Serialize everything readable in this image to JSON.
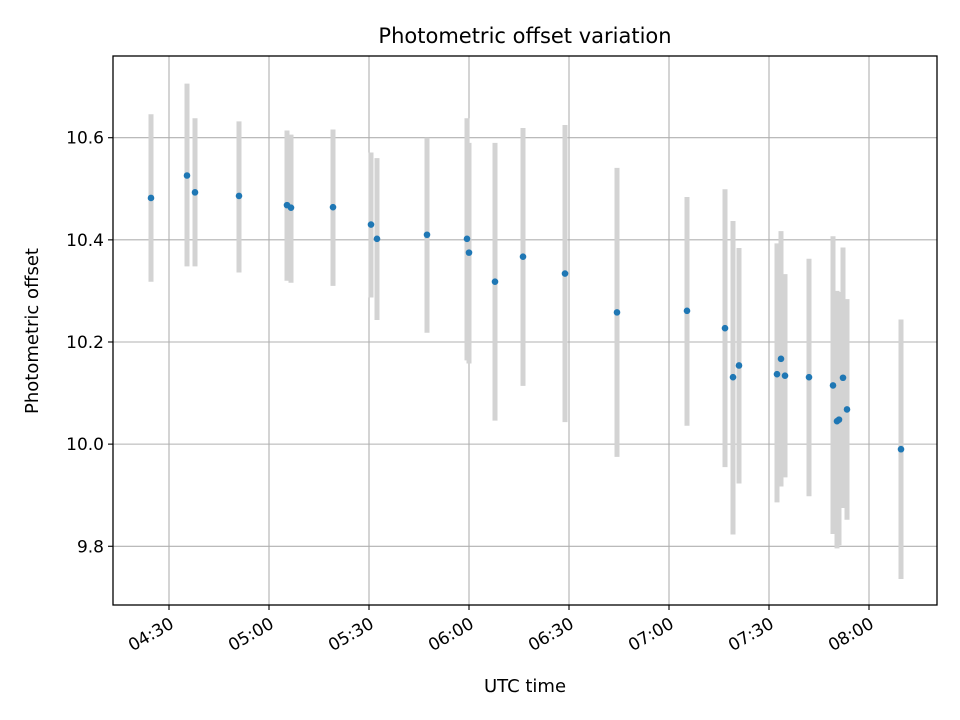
{
  "chart_data": {
    "type": "scatter",
    "title": "Photometric offset variation",
    "xlabel": "UTC time",
    "ylabel": "Photometric offset",
    "x_ticks": [
      "04:30",
      "05:00",
      "05:30",
      "06:00",
      "06:30",
      "07:00",
      "07:30",
      "08:00"
    ],
    "y_ticks": [
      "9.8",
      "10.0",
      "10.2",
      "10.4",
      "10.6"
    ],
    "y_tick_values": [
      9.8,
      10.0,
      10.2,
      10.4,
      10.6
    ],
    "xlim": [
      "04:13:12",
      "08:20:24"
    ],
    "ylim": [
      9.685,
      10.76
    ],
    "grid": true,
    "error_bar_color": "#d3d3d3",
    "point_color": "#1f77b4",
    "points": [
      {
        "x": "04:24:36",
        "y": 10.482,
        "ylo": 10.318,
        "yhi": 10.646
      },
      {
        "x": "04:35:24",
        "y": 10.526,
        "ylo": 10.348,
        "yhi": 10.706
      },
      {
        "x": "04:37:48",
        "y": 10.493,
        "ylo": 10.348,
        "yhi": 10.638
      },
      {
        "x": "04:51:00",
        "y": 10.486,
        "ylo": 10.336,
        "yhi": 10.632
      },
      {
        "x": "05:05:24",
        "y": 10.468,
        "ylo": 10.32,
        "yhi": 10.614
      },
      {
        "x": "05:06:36",
        "y": 10.463,
        "ylo": 10.316,
        "yhi": 10.606
      },
      {
        "x": "05:19:12",
        "y": 10.464,
        "ylo": 10.31,
        "yhi": 10.616
      },
      {
        "x": "05:30:36",
        "y": 10.43,
        "ylo": 10.287,
        "yhi": 10.571
      },
      {
        "x": "05:32:24",
        "y": 10.402,
        "ylo": 10.243,
        "yhi": 10.56
      },
      {
        "x": "05:47:24",
        "y": 10.41,
        "ylo": 10.218,
        "yhi": 10.6
      },
      {
        "x": "05:59:24",
        "y": 10.402,
        "ylo": 10.164,
        "yhi": 10.638
      },
      {
        "x": "06:00:00",
        "y": 10.375,
        "ylo": 10.158,
        "yhi": 10.59
      },
      {
        "x": "06:07:48",
        "y": 10.318,
        "ylo": 10.046,
        "yhi": 10.59
      },
      {
        "x": "06:16:12",
        "y": 10.367,
        "ylo": 10.114,
        "yhi": 10.619
      },
      {
        "x": "06:28:48",
        "y": 10.334,
        "ylo": 10.043,
        "yhi": 10.625
      },
      {
        "x": "06:44:24",
        "y": 10.258,
        "ylo": 9.975,
        "yhi": 10.541
      },
      {
        "x": "07:05:24",
        "y": 10.261,
        "ylo": 10.036,
        "yhi": 10.484
      },
      {
        "x": "07:16:48",
        "y": 10.227,
        "ylo": 9.955,
        "yhi": 10.499
      },
      {
        "x": "07:19:12",
        "y": 10.131,
        "ylo": 9.823,
        "yhi": 10.437
      },
      {
        "x": "07:21:00",
        "y": 10.154,
        "ylo": 9.923,
        "yhi": 10.384
      },
      {
        "x": "07:32:24",
        "y": 10.137,
        "ylo": 9.886,
        "yhi": 10.393
      },
      {
        "x": "07:33:36",
        "y": 10.167,
        "ylo": 9.917,
        "yhi": 10.417
      },
      {
        "x": "07:34:48",
        "y": 10.134,
        "ylo": 9.935,
        "yhi": 10.333
      },
      {
        "x": "07:42:00",
        "y": 10.131,
        "ylo": 9.898,
        "yhi": 10.363
      },
      {
        "x": "07:49:12",
        "y": 10.115,
        "ylo": 9.824,
        "yhi": 10.407
      },
      {
        "x": "07:50:24",
        "y": 10.045,
        "ylo": 9.796,
        "yhi": 10.3
      },
      {
        "x": "07:51:00",
        "y": 10.048,
        "ylo": 9.802,
        "yhi": 10.298
      },
      {
        "x": "07:52:12",
        "y": 10.13,
        "ylo": 9.875,
        "yhi": 10.385
      },
      {
        "x": "07:53:24",
        "y": 10.068,
        "ylo": 9.852,
        "yhi": 10.284
      },
      {
        "x": "08:09:36",
        "y": 9.99,
        "ylo": 9.736,
        "yhi": 10.244
      }
    ]
  }
}
